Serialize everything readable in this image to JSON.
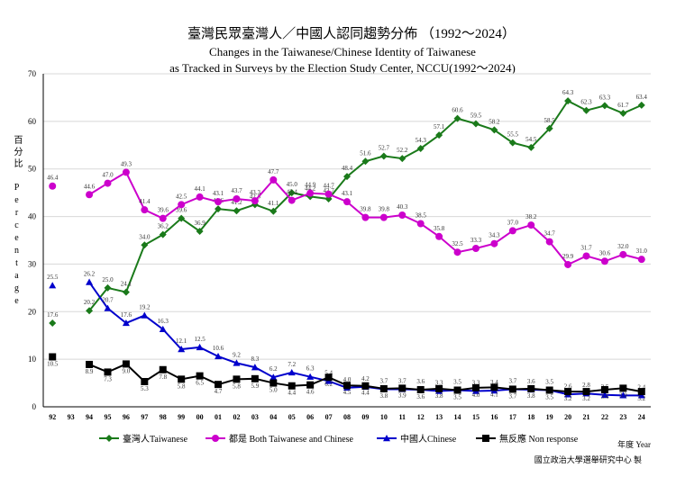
{
  "chart_data": {
    "type": "line",
    "title": "臺灣民眾臺灣人／中國人認同趨勢分佈 （1992～2024）",
    "subtitle": [
      "Changes in the Taiwanese/Chinese Identity of Taiwanese",
      "as Tracked in Surveys by the Election Study Center, NCCU(1992～2024)"
    ],
    "y_label": "百分比 Percentage",
    "x_label": "年度 Year",
    "source": "國立政治大學選舉研究中心 製",
    "categories": [
      "92",
      "93",
      "94",
      "95",
      "96",
      "97",
      "98",
      "99",
      "00",
      "01",
      "02",
      "03",
      "04",
      "05",
      "06",
      "07",
      "08",
      "09",
      "10",
      "11",
      "12",
      "13",
      "14",
      "15",
      "16",
      "17",
      "18",
      "19",
      "20",
      "21",
      "22",
      "23",
      "24"
    ],
    "ylim": [
      0,
      70
    ],
    "yticks": [
      0,
      10,
      20,
      30,
      40,
      50,
      60,
      70
    ],
    "grid": true,
    "series": [
      {
        "name": "臺灣人Taiwanese",
        "color": "#1a7a1a",
        "marker": "diamond",
        "values": [
          17.6,
          null,
          20.2,
          25.0,
          24.1,
          34.0,
          36.2,
          39.6,
          36.9,
          41.6,
          41.2,
          42.5,
          41.1,
          45.0,
          44.2,
          43.7,
          48.4,
          51.6,
          52.7,
          52.2,
          54.3,
          57.1,
          60.6,
          59.5,
          58.2,
          55.5,
          54.5,
          58.5,
          64.3,
          62.3,
          63.3,
          61.7,
          63.4
        ],
        "value_labels": [
          "17.6",
          null,
          "20.2",
          "25.0",
          "24.1",
          "34.0",
          "36.2",
          "39.6",
          "36.9",
          "41.6",
          "41.2",
          "42.5",
          "41.1",
          "45.0",
          "44.2",
          "43.7",
          "48.4",
          "51.6",
          "52.7",
          "52.2",
          "54.3",
          "57.1",
          "60.6",
          "59.5",
          "58.2",
          "55.5",
          "54.5",
          "58.5",
          "64.3",
          "62.3",
          "63.3",
          "61.7",
          "63.4"
        ]
      },
      {
        "name": "都是 Both Taiwanese and Chinese",
        "color": "#cc00cc",
        "marker": "circle",
        "values": [
          46.4,
          null,
          44.6,
          47.0,
          49.3,
          41.4,
          39.6,
          42.5,
          44.1,
          43.1,
          43.7,
          43.3,
          47.7,
          43.4,
          44.9,
          44.7,
          43.1,
          39.8,
          39.8,
          40.3,
          38.5,
          35.8,
          32.5,
          33.3,
          34.3,
          37.0,
          38.2,
          34.7,
          29.9,
          31.7,
          30.6,
          32.0,
          31.0
        ],
        "value_labels": [
          "46.4",
          null,
          "44.6",
          "47.0",
          "49.3",
          "41.4",
          "39.6",
          "42.5",
          "44.1",
          "43.1",
          "43.7",
          "43.3",
          "47.7",
          "43.4",
          "44.9",
          "44.7",
          "43.1",
          "39.8",
          "39.8",
          "40.3",
          "38.5",
          "35.8",
          "32.5",
          "33.3",
          "34.3",
          "37.0",
          "38.2",
          "34.7",
          "29.9",
          "31.7",
          "30.6",
          "32.0",
          "31.0"
        ]
      },
      {
        "name": "中國人Chinese",
        "color": "#0000cc",
        "marker": "triangle",
        "values": [
          25.5,
          null,
          26.2,
          20.7,
          17.6,
          19.2,
          16.3,
          12.1,
          12.5,
          10.6,
          9.2,
          8.3,
          6.2,
          7.2,
          6.3,
          5.4,
          4.0,
          4.2,
          3.7,
          3.7,
          3.6,
          3.3,
          3.5,
          3.3,
          3.4,
          3.7,
          3.6,
          3.5,
          2.6,
          2.8,
          2.5,
          2.4,
          2.4
        ],
        "value_labels": [
          "25.5",
          null,
          "26.2",
          "20.7",
          "17.6",
          "19.2",
          "16.3",
          "12.1",
          "12.5",
          "10.6",
          "9.2",
          "8.3",
          "6.2",
          "7.2",
          "6.3",
          "5.4",
          "4.0",
          "4.2",
          "3.7",
          "3.7",
          "3.6",
          "3.3",
          "3.5",
          "3.3",
          "3.4",
          "3.7",
          "3.6",
          "3.5",
          "2.6",
          "2.8",
          "2.5",
          "2.4",
          "2.4"
        ]
      },
      {
        "name": "無反應 Non response",
        "color": "#000000",
        "marker": "square",
        "values": [
          10.5,
          null,
          8.9,
          7.3,
          9.0,
          5.3,
          7.8,
          5.8,
          6.5,
          4.7,
          5.8,
          5.9,
          5.0,
          4.4,
          4.6,
          6.2,
          4.5,
          4.4,
          3.8,
          3.9,
          3.6,
          3.8,
          3.5,
          4.0,
          4.1,
          3.7,
          3.8,
          3.5,
          3.2,
          3.2,
          3.6,
          3.9,
          3.2
        ],
        "value_labels": [
          "10.5",
          null,
          "8.9",
          "7.3",
          "9.0",
          "5.3",
          "7.8",
          "5.8",
          "6.5",
          "4.7",
          "5.8",
          "5.9",
          "5.0",
          "4.4",
          "4.6",
          "6.2",
          "4.5",
          "4.4",
          "3.8",
          "3.9",
          "3.6",
          "3.8",
          "3.5",
          "4.0",
          "4.1",
          "3.7",
          "3.8",
          "3.5",
          "3.2",
          "3.2",
          "3.6",
          "3.9",
          "3.2"
        ]
      }
    ]
  }
}
